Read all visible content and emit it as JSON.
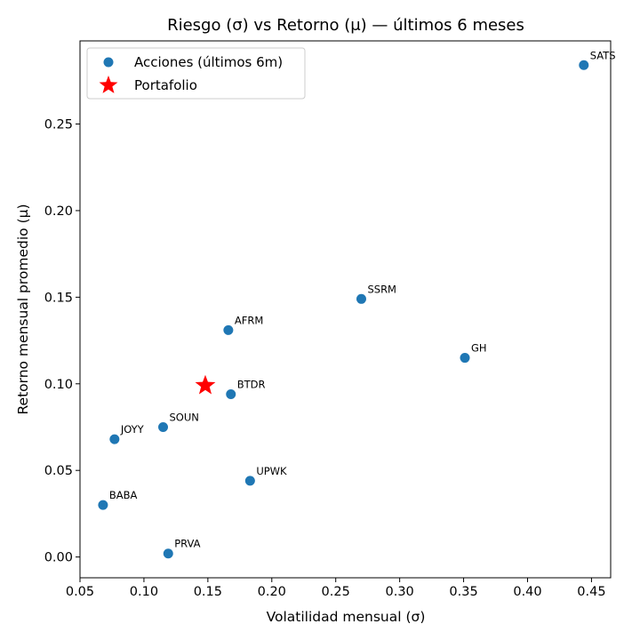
{
  "chart_data": {
    "type": "scatter",
    "title": "Riesgo (σ) vs Retorno (μ) — últimos 6 meses",
    "xlabel": "Volatilidad mensual (σ)",
    "ylabel": "Retorno mensual promedio (μ)",
    "xlim": [
      0.05,
      0.465
    ],
    "ylim": [
      -0.012,
      0.298
    ],
    "xticks": [
      "0.05",
      "0.10",
      "0.15",
      "0.20",
      "0.25",
      "0.30",
      "0.35",
      "0.40",
      "0.45"
    ],
    "xtick_values": [
      0.05,
      0.1,
      0.15,
      0.2,
      0.25,
      0.3,
      0.35,
      0.4,
      0.45
    ],
    "yticks": [
      "0.00",
      "0.05",
      "0.10",
      "0.15",
      "0.20",
      "0.25"
    ],
    "ytick_values": [
      0.0,
      0.05,
      0.1,
      0.15,
      0.2,
      0.25
    ],
    "grid": false,
    "legend_position": "top-left",
    "series": [
      {
        "name": "Acciones (últimos 6m)",
        "marker": "circle",
        "color": "#1f77b4",
        "points": [
          {
            "label": "SATS",
            "x": 0.444,
            "y": 0.284
          },
          {
            "label": "SSRM",
            "x": 0.27,
            "y": 0.149
          },
          {
            "label": "AFRM",
            "x": 0.166,
            "y": 0.131
          },
          {
            "label": "GH",
            "x": 0.351,
            "y": 0.115
          },
          {
            "label": "BTDR",
            "x": 0.168,
            "y": 0.094
          },
          {
            "label": "SOUN",
            "x": 0.115,
            "y": 0.075
          },
          {
            "label": "JOYY",
            "x": 0.077,
            "y": 0.068
          },
          {
            "label": "UPWK",
            "x": 0.183,
            "y": 0.044
          },
          {
            "label": "BABA",
            "x": 0.068,
            "y": 0.03
          },
          {
            "label": "PRVA",
            "x": 0.119,
            "y": 0.002
          }
        ]
      },
      {
        "name": "Portafolio",
        "marker": "star",
        "color": "#ff0000",
        "points": [
          {
            "x": 0.148,
            "y": 0.099
          }
        ]
      }
    ]
  }
}
